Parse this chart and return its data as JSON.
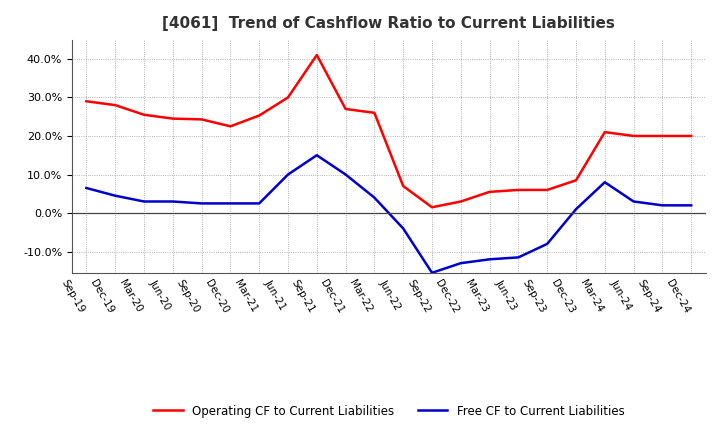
{
  "title": "[4061]  Trend of Cashflow Ratio to Current Liabilities",
  "x_labels": [
    "Sep-19",
    "Dec-19",
    "Mar-20",
    "Jun-20",
    "Sep-20",
    "Dec-20",
    "Mar-21",
    "Jun-21",
    "Sep-21",
    "Dec-21",
    "Mar-22",
    "Jun-22",
    "Sep-22",
    "Dec-22",
    "Mar-23",
    "Jun-23",
    "Sep-23",
    "Dec-23",
    "Mar-24",
    "Jun-24",
    "Sep-24",
    "Dec-24"
  ],
  "operating_cf": [
    0.29,
    0.28,
    0.255,
    0.245,
    0.243,
    0.225,
    0.253,
    0.3,
    0.41,
    0.27,
    0.26,
    0.07,
    0.015,
    0.03,
    0.055,
    0.06,
    0.06,
    0.085,
    0.21,
    0.2,
    0.2,
    0.2
  ],
  "free_cf": [
    0.065,
    0.045,
    0.03,
    0.03,
    0.025,
    0.025,
    0.025,
    0.1,
    0.15,
    0.1,
    0.04,
    -0.04,
    -0.155,
    -0.13,
    -0.12,
    -0.115,
    -0.08,
    0.01,
    0.08,
    0.03,
    0.02,
    0.02
  ],
  "operating_color": "#FF0000",
  "free_color": "#0000CC",
  "background_color": "#FFFFFF",
  "grid_color": "#AAAAAA",
  "ylim": [
    -0.155,
    0.45
  ],
  "yticks": [
    -0.1,
    0.0,
    0.1,
    0.2,
    0.3,
    0.4
  ],
  "legend_operating": "Operating CF to Current Liabilities",
  "legend_free": "Free CF to Current Liabilities",
  "title_color": "#333333"
}
